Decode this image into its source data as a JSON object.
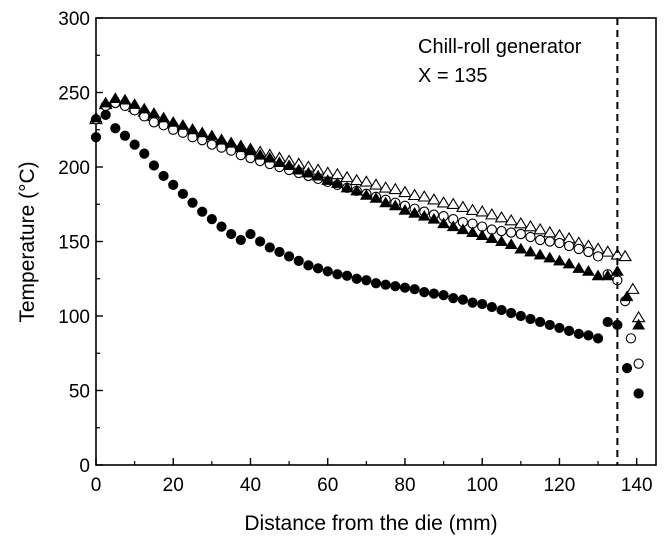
{
  "chart_data": {
    "type": "scatter",
    "title": "",
    "xlabel": "Distance from the die (mm)",
    "ylabel": "Temperature (°C)",
    "xlim": [
      0,
      145
    ],
    "ylim": [
      0,
      300
    ],
    "x_ticks": [
      0,
      20,
      40,
      60,
      80,
      100,
      120,
      140
    ],
    "y_ticks": [
      0,
      50,
      100,
      150,
      200,
      250,
      300
    ],
    "grid": false,
    "legend": "none",
    "annotation": {
      "line1": "Chill-roll generator",
      "line2": "X = 135",
      "x": 135
    },
    "series": [
      {
        "marker": "open-triangle",
        "color": "#000000",
        "x": [
          0,
          2.5,
          5,
          7.5,
          10,
          12.5,
          15,
          17.5,
          20,
          22.5,
          25,
          27.5,
          30,
          32.5,
          35,
          37.5,
          40,
          42.5,
          45,
          47.5,
          50,
          52.5,
          55,
          57.5,
          60,
          62.5,
          65,
          67.5,
          70,
          72.5,
          75,
          77.5,
          80,
          82.5,
          85,
          87.5,
          90,
          92.5,
          95,
          97.5,
          100,
          102.5,
          105,
          107.5,
          110,
          112.5,
          115,
          117.5,
          120,
          122.5,
          125,
          127.5,
          130,
          132.5,
          135,
          137,
          139,
          140.5
        ],
        "y": [
          232,
          242,
          245,
          244,
          240,
          237,
          234,
          231,
          229,
          227,
          225,
          222,
          220,
          218,
          216,
          214,
          212,
          210,
          208,
          206,
          204,
          202,
          200,
          198,
          196,
          195,
          193,
          191,
          190,
          188,
          186,
          185,
          183,
          181,
          180,
          178,
          176,
          175,
          173,
          171,
          170,
          168,
          166,
          164,
          162,
          160,
          158,
          156,
          154,
          152,
          149,
          147,
          145,
          143,
          141,
          140,
          118,
          99
        ]
      },
      {
        "marker": "open-circle",
        "color": "#000000",
        "x": [
          0,
          2.5,
          5,
          7.5,
          10,
          12.5,
          15,
          17.5,
          20,
          22.5,
          25,
          27.5,
          30,
          32.5,
          35,
          37.5,
          40,
          42.5,
          45,
          47.5,
          50,
          52.5,
          55,
          57.5,
          60,
          62.5,
          65,
          67.5,
          70,
          72.5,
          75,
          77.5,
          80,
          82.5,
          85,
          87.5,
          90,
          92.5,
          95,
          97.5,
          100,
          102.5,
          105,
          107.5,
          110,
          112.5,
          115,
          117.5,
          120,
          122.5,
          125,
          127.5,
          130,
          132.5,
          135,
          137,
          138.5,
          140.5
        ],
        "y": [
          232,
          241,
          243,
          241,
          238,
          234,
          230,
          228,
          225,
          223,
          220,
          218,
          215,
          213,
          211,
          208,
          206,
          204,
          202,
          200,
          198,
          196,
          194,
          192,
          190,
          188,
          186,
          184,
          182,
          180,
          178,
          176,
          174,
          172,
          170,
          168,
          167,
          165,
          163,
          162,
          160,
          158,
          157,
          156,
          155,
          153,
          151,
          150,
          149,
          147,
          145,
          143,
          140,
          128,
          124,
          110,
          85,
          68
        ]
      },
      {
        "marker": "filled-triangle",
        "color": "#000000",
        "x": [
          0,
          2.5,
          5,
          7.5,
          10,
          12.5,
          15,
          17.5,
          20,
          22.5,
          25,
          27.5,
          30,
          32.5,
          35,
          37.5,
          40,
          42.5,
          45,
          47.5,
          50,
          52.5,
          55,
          57.5,
          60,
          62.5,
          65,
          67.5,
          70,
          72.5,
          75,
          77.5,
          80,
          82.5,
          85,
          87.5,
          90,
          92.5,
          95,
          97.5,
          100,
          102.5,
          105,
          107.5,
          110,
          112.5,
          115,
          117.5,
          120,
          122.5,
          125,
          127.5,
          130,
          132.5,
          135,
          137.5,
          140.5
        ],
        "y": [
          233,
          243,
          246,
          245,
          242,
          239,
          236,
          233,
          230,
          228,
          225,
          223,
          221,
          218,
          216,
          213,
          211,
          208,
          206,
          203,
          201,
          198,
          196,
          194,
          191,
          189,
          186,
          184,
          181,
          179,
          176,
          174,
          171,
          169,
          167,
          165,
          162,
          160,
          158,
          156,
          154,
          152,
          150,
          148,
          145,
          143,
          141,
          139,
          137,
          135,
          132,
          130,
          127,
          127,
          130,
          113,
          94
        ]
      },
      {
        "marker": "filled-circle",
        "color": "#000000",
        "x": [
          0,
          2.5,
          5,
          7.5,
          10,
          12.5,
          15,
          17.5,
          20,
          22.5,
          25,
          27.5,
          30,
          32.5,
          35,
          37.5,
          40,
          42.5,
          45,
          47.5,
          50,
          52.5,
          55,
          57.5,
          60,
          62.5,
          65,
          67.5,
          70,
          72.5,
          75,
          77.5,
          80,
          82.5,
          85,
          87.5,
          90,
          92.5,
          95,
          97.5,
          100,
          102.5,
          105,
          107.5,
          110,
          112.5,
          115,
          117.5,
          120,
          122.5,
          125,
          127.5,
          130,
          132.5,
          135,
          137.5,
          140.5
        ],
        "y": [
          220,
          235,
          226,
          221,
          215,
          209,
          201,
          194,
          188,
          182,
          176,
          170,
          165,
          160,
          155,
          151,
          155,
          150,
          146,
          143,
          140,
          137,
          134,
          132,
          130,
          128,
          127,
          125,
          124,
          122,
          121,
          120,
          119,
          118,
          116,
          115,
          114,
          112,
          111,
          109,
          108,
          106,
          104,
          102,
          100,
          98,
          96,
          94,
          92,
          90,
          88,
          87,
          85,
          96,
          94,
          65,
          48
        ]
      }
    ]
  }
}
